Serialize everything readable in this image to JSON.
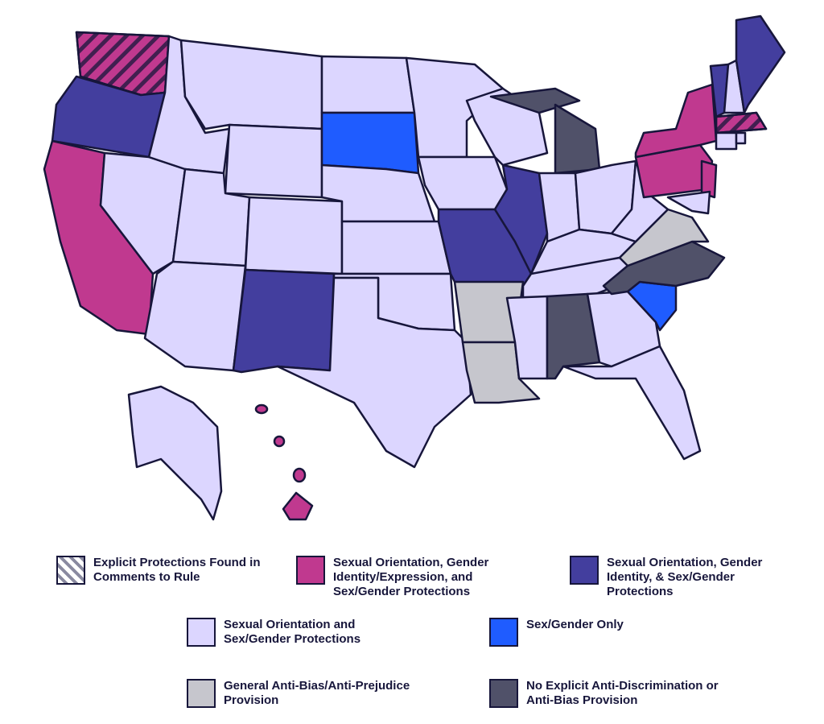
{
  "legend": [
    {
      "label": "Explicit Protections Found in Comments to Rule",
      "color": "#ffffff",
      "hatch": true
    },
    {
      "label": "Sexual Orientation, Gender Identity/Expression, and Sex/Gender Protections",
      "color": "#c0398f"
    },
    {
      "label": "Sexual Orientation, Gender Identity, & Sex/Gender Protections",
      "color": "#433e9e"
    },
    {
      "label": "Sexual Orientation and Sex/Gender Protections",
      "color": "#dcd6ff"
    },
    {
      "label": "Sex/Gender Only",
      "color": "#1f5cff"
    },
    {
      "label": "General Anti-Bias/Anti-Prejudice Provision",
      "color": "#c6c6cd"
    },
    {
      "label": "No Explicit Anti-Discrimination or Anti-Bias Provision",
      "color": "#505169"
    }
  ]
}
